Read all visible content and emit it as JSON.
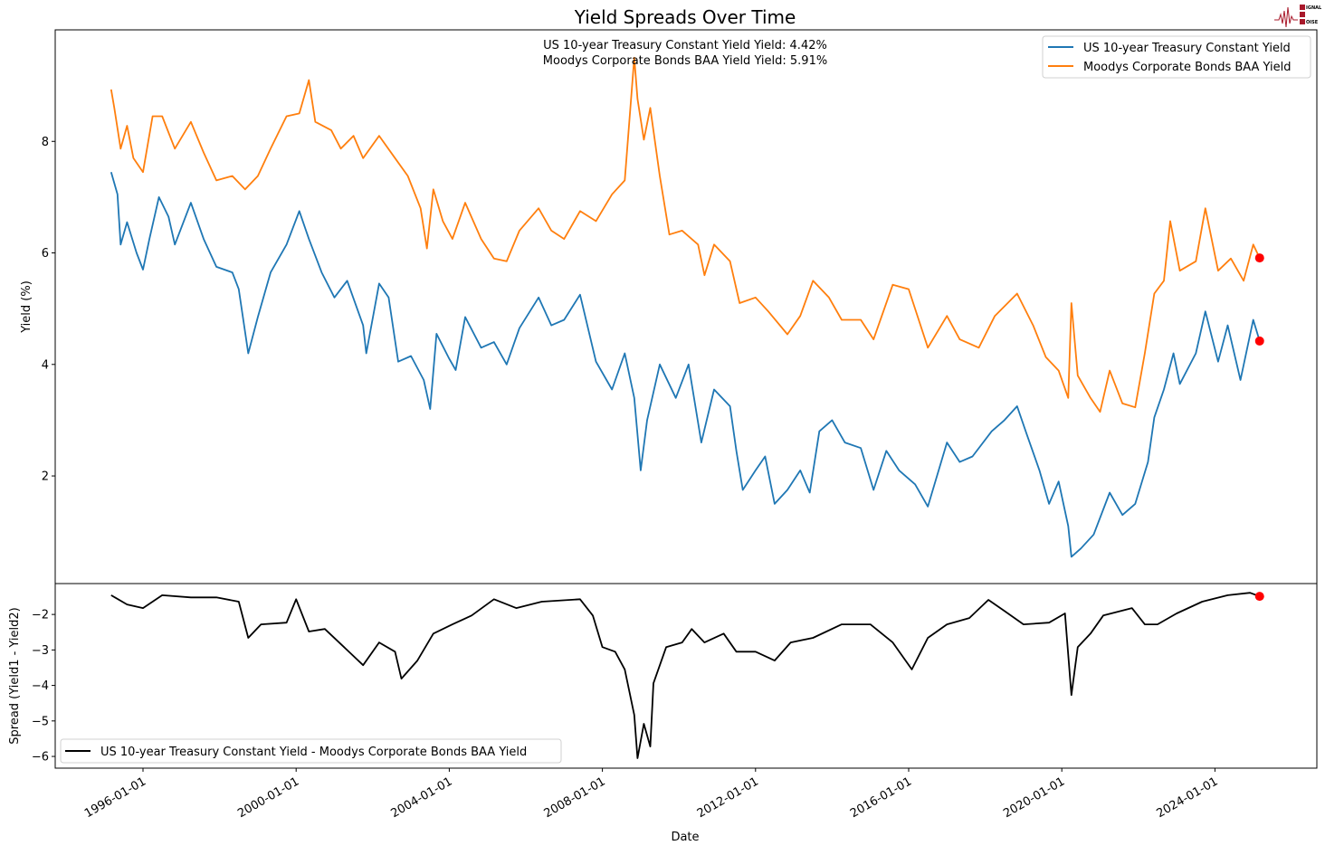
{
  "chart_data": [
    {
      "type": "line",
      "title": "Yield Spreads Over Time",
      "ylabel": "Yield (%)",
      "ylim": [
        0.07,
        10.0
      ],
      "yticks": [
        2,
        4,
        6,
        8
      ],
      "legend_placement": "upper-right",
      "grid": false,
      "annotations": [
        "US 10-year Treasury Constant Yield Yield: 4.42%",
        "Moodys Corporate Bonds BAA Yield Yield: 5.91%"
      ],
      "series": [
        {
          "name": "US 10-year Treasury Constant Yield",
          "color": "#1f77b4",
          "x": [
            "1995-03",
            "1995-05",
            "1995-06",
            "1995-08",
            "1995-11",
            "1996-01",
            "1996-03",
            "1996-06",
            "1996-09",
            "1996-11",
            "1997-04",
            "1997-08",
            "1997-12",
            "1998-05",
            "1998-07",
            "1998-10",
            "1999-01",
            "1999-05",
            "1999-10",
            "2000-02",
            "2000-05",
            "2000-09",
            "2001-01",
            "2001-05",
            "2001-10",
            "2001-11",
            "2002-03",
            "2002-06",
            "2002-09",
            "2003-01",
            "2003-05",
            "2003-07",
            "2003-09",
            "2004-01",
            "2004-03",
            "2004-06",
            "2004-11",
            "2005-03",
            "2005-07",
            "2005-11",
            "2006-05",
            "2006-09",
            "2007-01",
            "2007-06",
            "2007-11",
            "2008-04",
            "2008-08",
            "2008-11",
            "2009-01",
            "2009-03",
            "2009-07",
            "2009-12",
            "2010-04",
            "2010-08",
            "2010-12",
            "2011-05",
            "2011-07",
            "2011-09",
            "2012-01",
            "2012-04",
            "2012-07",
            "2012-11",
            "2013-03",
            "2013-06",
            "2013-09",
            "2014-01",
            "2014-05",
            "2014-10",
            "2015-02",
            "2015-06",
            "2015-10",
            "2016-03",
            "2016-07",
            "2017-01",
            "2017-05",
            "2017-09",
            "2018-03",
            "2018-07",
            "2018-11",
            "2019-02",
            "2019-06",
            "2019-09",
            "2019-12",
            "2020-03",
            "2020-04",
            "2020-07",
            "2020-11",
            "2021-04",
            "2021-08",
            "2021-12",
            "2022-04",
            "2022-06",
            "2022-09",
            "2022-12",
            "2023-02",
            "2023-07",
            "2023-10",
            "2024-02",
            "2024-05",
            "2024-09",
            "2025-01",
            "2025-03"
          ],
          "values": [
            7.45,
            7.05,
            6.15,
            6.55,
            6.0,
            5.7,
            6.25,
            7.0,
            6.65,
            6.15,
            6.9,
            6.25,
            5.75,
            5.65,
            5.35,
            4.2,
            4.85,
            5.65,
            6.15,
            6.75,
            6.25,
            5.65,
            5.2,
            5.5,
            4.7,
            4.2,
            5.45,
            5.2,
            4.05,
            4.15,
            3.72,
            3.2,
            4.55,
            4.1,
            3.9,
            4.85,
            4.3,
            4.4,
            4.0,
            4.65,
            5.2,
            4.7,
            4.8,
            5.25,
            4.05,
            3.55,
            4.2,
            3.4,
            2.1,
            3.0,
            4.0,
            3.4,
            4.0,
            2.6,
            3.55,
            3.25,
            2.45,
            1.75,
            2.1,
            2.35,
            1.5,
            1.75,
            2.1,
            1.7,
            2.8,
            3.0,
            2.6,
            2.5,
            1.75,
            2.45,
            2.1,
            1.85,
            1.45,
            2.6,
            2.25,
            2.35,
            2.8,
            3.0,
            3.25,
            2.75,
            2.1,
            1.5,
            1.9,
            1.1,
            0.55,
            0.7,
            0.95,
            1.7,
            1.3,
            1.5,
            2.25,
            3.05,
            3.55,
            4.2,
            3.65,
            4.2,
            4.95,
            4.05,
            4.7,
            3.72,
            4.8,
            4.42
          ]
        },
        {
          "name": "Moodys Corporate Bonds BAA Yield",
          "color": "#ff7f0e",
          "x": [
            "1995-03",
            "1995-04",
            "1995-06",
            "1995-08",
            "1995-10",
            "1996-01",
            "1996-04",
            "1996-07",
            "1996-11",
            "1997-04",
            "1997-08",
            "1997-12",
            "1998-05",
            "1998-09",
            "1999-01",
            "1999-05",
            "1999-10",
            "2000-02",
            "2000-05",
            "2000-07",
            "2000-12",
            "2001-03",
            "2001-07",
            "2001-10",
            "2002-03",
            "2002-08",
            "2002-12",
            "2003-04",
            "2003-06",
            "2003-08",
            "2003-11",
            "2004-02",
            "2004-06",
            "2004-11",
            "2005-03",
            "2005-07",
            "2005-11",
            "2006-05",
            "2006-09",
            "2007-01",
            "2007-06",
            "2007-11",
            "2008-04",
            "2008-08",
            "2008-11",
            "2008-12",
            "2009-02",
            "2009-04",
            "2009-07",
            "2009-10",
            "2010-02",
            "2010-07",
            "2010-09",
            "2010-12",
            "2011-05",
            "2011-08",
            "2012-01",
            "2012-05",
            "2012-11",
            "2013-03",
            "2013-07",
            "2013-12",
            "2014-04",
            "2014-10",
            "2015-02",
            "2015-08",
            "2016-01",
            "2016-07",
            "2017-01",
            "2017-05",
            "2017-11",
            "2018-04",
            "2018-11",
            "2019-04",
            "2019-08",
            "2019-12",
            "2020-03",
            "2020-04",
            "2020-06",
            "2020-10",
            "2021-01",
            "2021-04",
            "2021-08",
            "2021-12",
            "2022-03",
            "2022-06",
            "2022-09",
            "2022-11",
            "2023-02",
            "2023-07",
            "2023-10",
            "2024-02",
            "2024-06",
            "2024-10",
            "2025-01",
            "2025-03"
          ],
          "values": [
            8.93,
            8.6,
            7.87,
            8.28,
            7.7,
            7.45,
            8.45,
            8.45,
            7.87,
            8.35,
            7.8,
            7.3,
            7.38,
            7.14,
            7.38,
            7.87,
            8.45,
            8.5,
            9.1,
            8.35,
            8.2,
            7.87,
            8.1,
            7.7,
            8.1,
            7.7,
            7.38,
            6.8,
            6.08,
            7.14,
            6.57,
            6.25,
            6.9,
            6.25,
            5.9,
            5.85,
            6.4,
            6.8,
            6.4,
            6.25,
            6.75,
            6.57,
            7.05,
            7.3,
            9.5,
            8.76,
            8.03,
            8.6,
            7.38,
            6.33,
            6.4,
            6.15,
            5.6,
            6.15,
            5.85,
            5.1,
            5.2,
            4.95,
            4.54,
            4.87,
            5.5,
            5.2,
            4.8,
            4.8,
            4.45,
            5.43,
            5.35,
            4.3,
            4.87,
            4.45,
            4.3,
            4.87,
            5.27,
            4.7,
            4.13,
            3.89,
            3.4,
            5.1,
            3.8,
            3.4,
            3.15,
            3.89,
            3.3,
            3.23,
            4.2,
            5.27,
            5.5,
            6.57,
            5.68,
            5.85,
            6.8,
            5.68,
            5.9,
            5.5,
            6.15,
            5.91
          ]
        }
      ],
      "last_points": {
        "color": "#ff0000",
        "values": [
          4.42,
          5.91
        ]
      }
    },
    {
      "type": "line",
      "xlabel": "Date",
      "ylabel": "Spread (Yield1 - Yield2)",
      "ylim": [
        -6.33,
        -1.13
      ],
      "yticks": [
        -2,
        -3,
        -4,
        -5,
        -6
      ],
      "xticks": [
        "1996-01-01",
        "2000-01-01",
        "2004-01-01",
        "2008-01-01",
        "2012-01-01",
        "2016-01-01",
        "2020-01-01",
        "2024-01-01"
      ],
      "legend_placement": "lower-left",
      "series": [
        {
          "name": "US 10-year Treasury Constant Yield - Moodys Corporate Bonds BAA Yield",
          "color": "#000000",
          "x": [
            "1995-03",
            "1995-08",
            "1996-01",
            "1996-07",
            "1997-04",
            "1997-12",
            "1998-07",
            "1998-10",
            "1999-02",
            "1999-10",
            "2000-01",
            "2000-05",
            "2000-10",
            "2001-04",
            "2001-10",
            "2002-03",
            "2002-08",
            "2002-10",
            "2003-03",
            "2003-08",
            "2004-02",
            "2004-08",
            "2005-03",
            "2005-10",
            "2006-06",
            "2007-06",
            "2007-10",
            "2008-01",
            "2008-05",
            "2008-08",
            "2008-11",
            "2008-12",
            "2009-02",
            "2009-04",
            "2009-05",
            "2009-09",
            "2010-02",
            "2010-05",
            "2010-09",
            "2011-03",
            "2011-07",
            "2012-01",
            "2012-07",
            "2012-12",
            "2013-07",
            "2014-04",
            "2015-01",
            "2015-08",
            "2016-02",
            "2016-07",
            "2017-01",
            "2017-08",
            "2018-02",
            "2018-07",
            "2019-01",
            "2019-09",
            "2020-02",
            "2020-04",
            "2020-06",
            "2020-10",
            "2021-02",
            "2021-11",
            "2022-03",
            "2022-07",
            "2023-01",
            "2023-09",
            "2024-05",
            "2024-12",
            "2025-03"
          ],
          "values": [
            -1.46,
            -1.72,
            -1.82,
            -1.46,
            -1.52,
            -1.52,
            -1.64,
            -2.66,
            -2.28,
            -2.23,
            -1.57,
            -2.48,
            -2.41,
            -2.92,
            -3.43,
            -2.79,
            -3.05,
            -3.81,
            -3.3,
            -2.54,
            -2.28,
            -2.03,
            -1.57,
            -1.82,
            -1.64,
            -1.57,
            -2.03,
            -2.92,
            -3.05,
            -3.55,
            -4.83,
            -6.05,
            -5.08,
            -5.72,
            -3.94,
            -2.92,
            -2.79,
            -2.41,
            -2.79,
            -2.54,
            -3.05,
            -3.05,
            -3.3,
            -2.79,
            -2.66,
            -2.28,
            -2.28,
            -2.79,
            -3.55,
            -2.66,
            -2.28,
            -2.1,
            -1.59,
            -1.9,
            -2.28,
            -2.23,
            -1.97,
            -4.27,
            -2.92,
            -2.54,
            -2.03,
            -1.82,
            -2.28,
            -2.28,
            -1.97,
            -1.64,
            -1.46,
            -1.39,
            -1.49
          ]
        }
      ],
      "last_points": {
        "color": "#ff0000",
        "values": [
          -1.49
        ]
      }
    }
  ],
  "logo": {
    "text": "SIGNAL 2 NOISE",
    "color": "#a8182a"
  }
}
